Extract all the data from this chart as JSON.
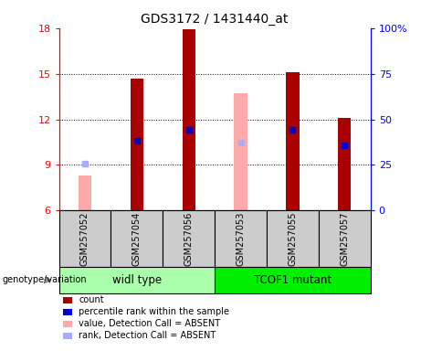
{
  "title": "GDS3172 / 1431440_at",
  "samples": [
    "GSM257052",
    "GSM257054",
    "GSM257056",
    "GSM257053",
    "GSM257055",
    "GSM257057"
  ],
  "groups": [
    "widl type",
    "TCOF1 mutant"
  ],
  "ylim_left": [
    6,
    18
  ],
  "ylim_right": [
    0,
    100
  ],
  "yticks_left": [
    6,
    9,
    12,
    15,
    18
  ],
  "yticks_right": [
    0,
    25,
    50,
    75,
    100
  ],
  "ytick_right_labels": [
    "0",
    "25",
    "50",
    "75",
    "100%"
  ],
  "count_values": [
    null,
    14.7,
    17.9,
    null,
    15.1,
    12.1
  ],
  "count_base": 6,
  "rank_values": [
    null,
    10.6,
    11.3,
    null,
    11.3,
    10.3
  ],
  "absent_value_vals": [
    8.3,
    null,
    null,
    13.7,
    null,
    null
  ],
  "absent_rank_vals": [
    9.1,
    null,
    null,
    10.5,
    null,
    null
  ],
  "color_count": "#AA0000",
  "color_rank": "#0000CC",
  "color_absent_value": "#FFAAAA",
  "color_absent_rank": "#AAAAFF",
  "color_group1_bg": "#AAFFAA",
  "color_group2_bg": "#00EE00",
  "bg_sample": "#CCCCCC",
  "legend_labels": [
    "count",
    "percentile rank within the sample",
    "value, Detection Call = ABSENT",
    "rank, Detection Call = ABSENT"
  ],
  "legend_colors": [
    "#AA0000",
    "#0000CC",
    "#FFAAAA",
    "#AAAAFF"
  ],
  "bar_width": 0.25
}
